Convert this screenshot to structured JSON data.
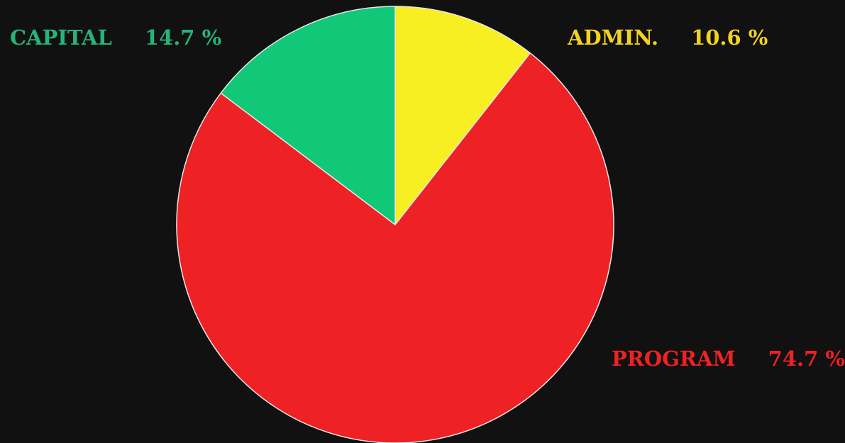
{
  "chart_data": {
    "type": "pie",
    "title": "",
    "legend": "none",
    "slices": [
      {
        "label": "ADMIN.",
        "value": 10.6,
        "value_text": "10.6 %",
        "color": "#f7ef22"
      },
      {
        "label": "PROGRAM",
        "value": 74.7,
        "value_text": "74.7 %",
        "color": "#ee2124"
      },
      {
        "label": "CAPITAL",
        "value": 14.7,
        "value_text": "14.7 %",
        "color": "#10c878"
      }
    ]
  },
  "colors": {
    "background": "#111111",
    "slice_border": "#e8e8e8",
    "admin_label": "#f2d21f",
    "program_label": "#ee2124",
    "capital_label": "#26b47a"
  }
}
